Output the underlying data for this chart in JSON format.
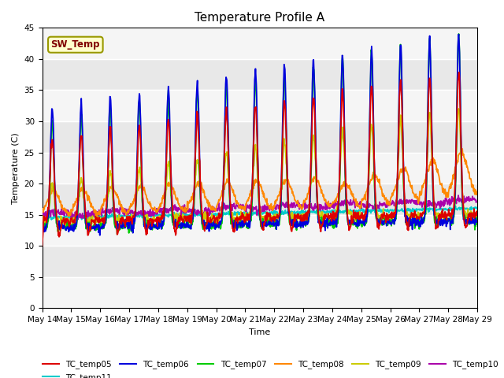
{
  "title": "Temperature Profile A",
  "xlabel": "Time",
  "ylabel": "Temperature (C)",
  "ylim": [
    0,
    45
  ],
  "yticks": [
    0,
    5,
    10,
    15,
    20,
    25,
    30,
    35,
    40,
    45
  ],
  "sw_temp_label": "SW_Temp",
  "sw_temp_box_color": "#ffffcc",
  "sw_temp_text_color": "#800000",
  "sw_temp_edge_color": "#999900",
  "x_tick_labels": [
    "May 14",
    "May 15",
    "May 16",
    "May 17",
    "May 18",
    "May 19",
    "May 20",
    "May 21",
    "May 22",
    "May 23",
    "May 24",
    "May 25",
    "May 26",
    "May 27",
    "May 28",
    "May 29"
  ],
  "series_colors": {
    "TC_temp05": "#dd0000",
    "TC_temp06": "#0000dd",
    "TC_temp07": "#00cc00",
    "TC_temp08": "#ff8800",
    "TC_temp09": "#cccc00",
    "TC_temp10": "#aa00aa",
    "TC_temp11": "#00cccc"
  },
  "n_days": 15,
  "pts_per_day": 72,
  "plot_bg": "#e8e8e8",
  "stripe_color": "#f5f5f5",
  "grid_color": "#ffffff"
}
